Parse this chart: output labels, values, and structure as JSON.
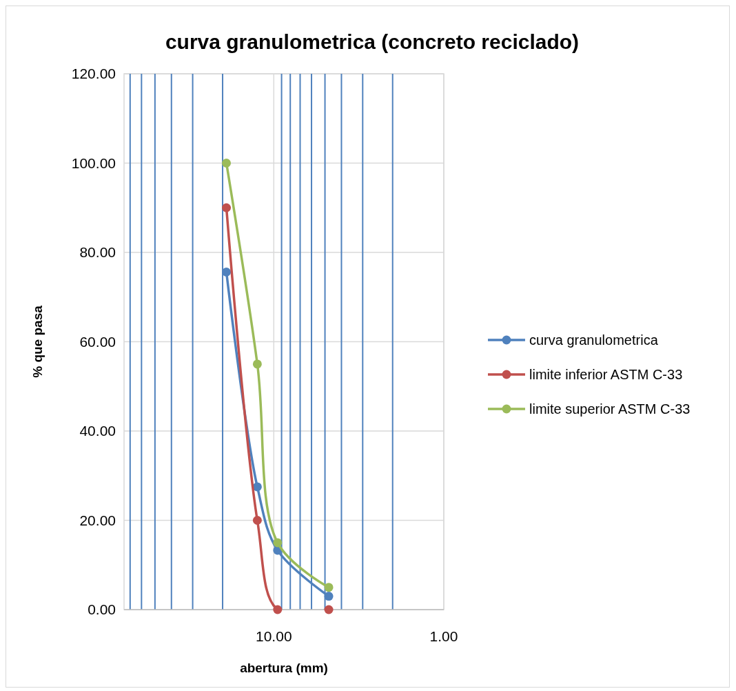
{
  "chart_data": {
    "type": "line",
    "title": "curva granulometrica (concreto reciclado)",
    "xlabel": "abertura (mm)",
    "ylabel": "% que pasa",
    "log": "x",
    "x": [
      19,
      12.5,
      9.5,
      4.75
    ],
    "xlim": [
      76,
      1
    ],
    "xticks": [
      {
        "value": 10,
        "label": "10.00"
      },
      {
        "value": 1,
        "label": "1.00"
      }
    ],
    "ylim": [
      0,
      120
    ],
    "yticks": [
      {
        "value": 0,
        "label": "0.00"
      },
      {
        "value": 20,
        "label": "20.00"
      },
      {
        "value": 40,
        "label": "40.00"
      },
      {
        "value": 60,
        "label": "60.00"
      },
      {
        "value": 80,
        "label": "80.00"
      },
      {
        "value": 100,
        "label": "100.00"
      },
      {
        "value": 120,
        "label": "120.00"
      }
    ],
    "series": [
      {
        "name": "curva granulometrica",
        "color": "#4f81bd",
        "values": [
          75.6,
          27.5,
          13.3,
          3.0
        ]
      },
      {
        "name": "limite inferior ASTM C-33",
        "color": "#c0504d",
        "values": [
          90,
          20,
          0,
          0
        ]
      },
      {
        "name": "limite superior ASTM C-33",
        "color": "#9bbb59",
        "values": [
          100,
          55,
          15,
          5
        ]
      }
    ],
    "ref_lines": [
      {
        "axis": "x",
        "value": 70,
        "color": "#4f81bd"
      },
      {
        "axis": "x",
        "value": 60,
        "color": "#4f81bd"
      },
      {
        "axis": "x",
        "value": 50,
        "color": "#4f81bd"
      },
      {
        "axis": "x",
        "value": 40,
        "color": "#4f81bd"
      },
      {
        "axis": "x",
        "value": 30,
        "color": "#4f81bd"
      },
      {
        "axis": "x",
        "value": 20,
        "color": "#4f81bd"
      },
      {
        "axis": "x",
        "value": 9,
        "color": "#4f81bd"
      },
      {
        "axis": "x",
        "value": 8,
        "color": "#4f81bd"
      },
      {
        "axis": "x",
        "value": 7,
        "color": "#4f81bd"
      },
      {
        "axis": "x",
        "value": 6,
        "color": "#4f81bd"
      },
      {
        "axis": "x",
        "value": 5,
        "color": "#4f81bd"
      },
      {
        "axis": "x",
        "value": 4,
        "color": "#4f81bd"
      },
      {
        "axis": "x",
        "value": 3,
        "color": "#4f81bd"
      },
      {
        "axis": "x",
        "value": 2,
        "color": "#4f81bd"
      }
    ],
    "grid": true,
    "legend": "right",
    "marker": "circle",
    "line_style": "solid"
  }
}
